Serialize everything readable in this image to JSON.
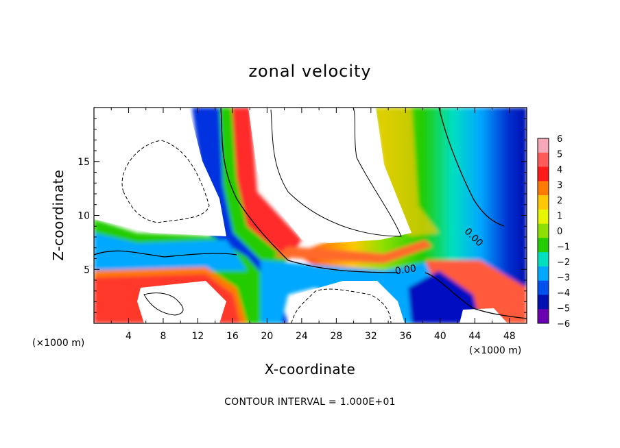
{
  "chart_data": {
    "type": "heatmap",
    "title": "zonal velocity",
    "xlabel": "X-coordinate",
    "ylabel": "Z-coordinate",
    "x_unit_label": "(×1000 m)",
    "x_unit_label_right": "(×1000 m)",
    "footer": "CONTOUR INTERVAL = 1.000E+01",
    "xlim": [
      0,
      50
    ],
    "ylim": [
      0,
      20
    ],
    "x_ticks": [
      4,
      8,
      12,
      16,
      20,
      24,
      28,
      32,
      36,
      40,
      44,
      48
    ],
    "y_ticks": [
      5,
      10,
      15
    ],
    "x_tick_labels": [
      "4",
      "8",
      "12",
      "16",
      "20",
      "24",
      "28",
      "32",
      "36",
      "40",
      "44",
      "48"
    ],
    "y_tick_labels": [
      "5",
      "10",
      "15"
    ],
    "colorbar": {
      "min": -6,
      "max": 6,
      "ticks": [
        6,
        5,
        4,
        3,
        2,
        1,
        0,
        -1,
        -2,
        -3,
        -4,
        -5,
        -6
      ],
      "labels": [
        "6",
        "5",
        "4",
        "3",
        "2",
        "1",
        "0",
        "−1",
        "−2",
        "−3",
        "−4",
        "−5",
        "−6"
      ],
      "colors": [
        "#f7a8b8",
        "#ff5a5a",
        "#ff1a1a",
        "#ff7a00",
        "#ffc800",
        "#e8f500",
        "#8ee000",
        "#22cc00",
        "#00e0c0",
        "#00a8ff",
        "#0050f0",
        "#0010b0",
        "#6a00b0"
      ]
    },
    "contour_labels": [
      {
        "text": "0.00",
        "x": 43.9,
        "y": 8.0
      },
      {
        "text": "0.00",
        "x": 36.0,
        "y": 5.0
      }
    ]
  }
}
